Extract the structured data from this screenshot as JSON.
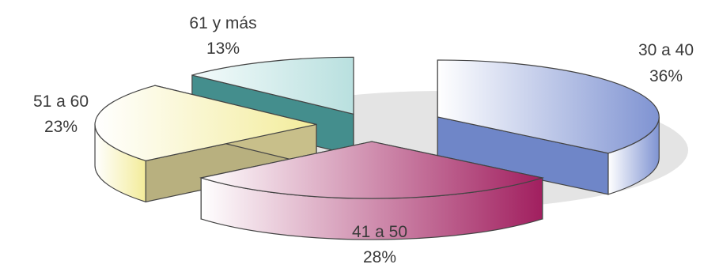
{
  "chart_data": {
    "type": "pie",
    "categories": [
      "30 a 40",
      "41 a 50",
      "51 a 60",
      "61 y más"
    ],
    "values": [
      36,
      28,
      23,
      13
    ],
    "value_labels": [
      "36%",
      "28%",
      "23%",
      "13%"
    ],
    "title": "",
    "legend": "none",
    "style": "3d-exploded",
    "colors": {
      "30 a 40": "#6f86c8",
      "41 a 50": "#a8306c",
      "51 a 60": "#c8bf8a",
      "61 y más": "#4a9a99"
    }
  }
}
